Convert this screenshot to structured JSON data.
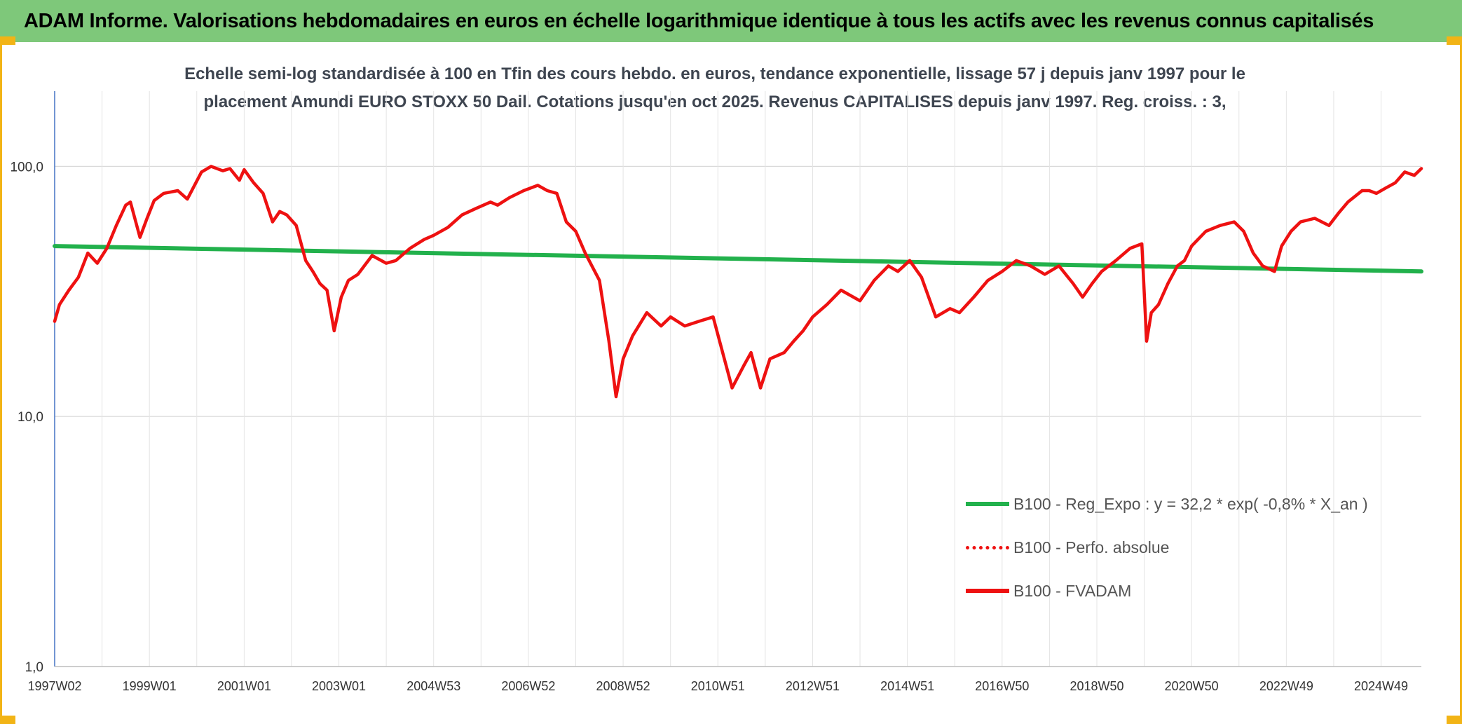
{
  "header": {
    "title": "ADAM Informe. Valorisations hebdomadaires en euros en échelle logarithmique identique à tous les actifs avec les revenus connus capitalisés"
  },
  "colors": {
    "banner": "#7ec87a",
    "accent": "#f2b416",
    "regression": "#22b14c",
    "fvadam": "#ee1111"
  },
  "chart_data": {
    "type": "line",
    "title_line1": "Echelle semi-log standardisée à 100 en Tfin des cours hebdo. en euros, tendance exponentielle, lissage 57 j depuis janv 1997 pour le",
    "title_line2": "placement Amundi EURO STOXX 50 Dail. Cotations jusqu'en oct 2025. Revenus CAPITALISES depuis janv 1997. Reg. croiss. : 3,",
    "y_scale": "log",
    "ylim": [
      1,
      200
    ],
    "xlim": [
      1997.0,
      2025.85
    ],
    "y_ticks": [
      "1,0",
      "10,0",
      "100,0"
    ],
    "y_tick_values": [
      1,
      10,
      100
    ],
    "x_ticks": [
      "1997W02",
      "1999W01",
      "2001W01",
      "2003W01",
      "2004W53",
      "2006W52",
      "2008W52",
      "2010W51",
      "2012W51",
      "2014W51",
      "2016W50",
      "2018W50",
      "2020W50",
      "2022W49",
      "2024W49"
    ],
    "x_tick_years": [
      1997.0,
      1999.0,
      2001.0,
      2003.0,
      2005.0,
      2007.0,
      2009.0,
      2011.0,
      2013.0,
      2015.0,
      2017.0,
      2019.0,
      2021.0,
      2023.0,
      2025.0
    ],
    "grid": true,
    "legend_position": "bottom-right",
    "series": [
      {
        "name": "B100 - Reg_Expo : y = 32,2 * exp( -0,8% *  X_an )",
        "style": "solid",
        "color": "#22b14c",
        "x": [
          1997.0,
          2025.85
        ],
        "y": [
          48,
          38
        ]
      },
      {
        "name": "B100 - Perfo. absolue",
        "style": "dotted",
        "color": "#ee1111",
        "x": [],
        "y": []
      },
      {
        "name": "B100 - FVADAM",
        "style": "solid",
        "color": "#ee1111",
        "x": [
          1997.0,
          1997.1,
          1997.3,
          1997.5,
          1997.7,
          1997.9,
          1998.1,
          1998.3,
          1998.5,
          1998.6,
          1998.8,
          1998.95,
          1999.1,
          1999.3,
          1999.6,
          1999.8,
          2000.1,
          2000.3,
          2000.55,
          2000.7,
          2000.9,
          2001.0,
          2001.2,
          2001.4,
          2001.6,
          2001.75,
          2001.9,
          2002.1,
          2002.3,
          2002.45,
          2002.6,
          2002.75,
          2002.9,
          2003.05,
          2003.2,
          2003.4,
          2003.7,
          2004.0,
          2004.2,
          2004.5,
          2004.8,
          2005.0,
          2005.3,
          2005.6,
          2005.9,
          2006.2,
          2006.35,
          2006.6,
          2006.9,
          2007.2,
          2007.4,
          2007.6,
          2007.8,
          2008.0,
          2008.2,
          2008.5,
          2008.7,
          2008.85,
          2009.0,
          2009.2,
          2009.5,
          2009.8,
          2010.0,
          2010.3,
          2010.6,
          2010.9,
          2011.3,
          2011.55,
          2011.7,
          2011.9,
          2012.1,
          2012.4,
          2012.6,
          2012.8,
          2013.0,
          2013.3,
          2013.6,
          2014.0,
          2014.3,
          2014.6,
          2014.8,
          2015.05,
          2015.3,
          2015.6,
          2015.9,
          2016.1,
          2016.4,
          2016.7,
          2017.0,
          2017.3,
          2017.6,
          2017.9,
          2018.2,
          2018.5,
          2018.7,
          2018.9,
          2019.1,
          2019.4,
          2019.7,
          2019.95,
          2020.05,
          2020.15,
          2020.3,
          2020.5,
          2020.7,
          2020.85,
          2021.0,
          2021.3,
          2021.6,
          2021.9,
          2022.1,
          2022.3,
          2022.5,
          2022.75,
          2022.9,
          2023.1,
          2023.3,
          2023.6,
          2023.9,
          2024.1,
          2024.3,
          2024.6,
          2024.75,
          2024.9,
          2025.1,
          2025.3,
          2025.5,
          2025.7,
          2025.85
        ],
        "y": [
          24,
          28,
          32,
          36,
          45,
          41,
          47,
          58,
          70,
          72,
          52,
          62,
          73,
          78,
          80,
          74,
          95,
          100,
          96,
          98,
          88,
          97,
          86,
          78,
          60,
          66,
          64,
          58,
          42,
          38,
          34,
          32,
          22,
          30,
          35,
          37,
          44,
          41,
          42,
          47,
          51,
          53,
          57,
          64,
          68,
          72,
          70,
          75,
          80,
          84,
          80,
          78,
          60,
          55,
          45,
          35,
          20,
          12,
          17,
          21,
          26,
          23,
          25,
          23,
          24,
          25,
          13,
          16,
          18,
          13,
          17,
          18,
          20,
          22,
          25,
          28,
          32,
          29,
          35,
          40,
          38,
          42,
          36,
          25,
          27,
          26,
          30,
          35,
          38,
          42,
          40,
          37,
          40,
          34,
          30,
          34,
          38,
          42,
          47,
          49,
          20,
          26,
          28,
          34,
          40,
          42,
          48,
          55,
          58,
          60,
          55,
          45,
          40,
          38,
          48,
          55,
          60,
          62,
          58,
          65,
          72,
          80,
          80,
          78,
          82,
          86,
          95,
          92,
          98
        ]
      }
    ]
  },
  "legend": {
    "items": [
      {
        "label": "B100 - Reg_Expo : y = 32,2 * exp( -0,8% *  X_an )"
      },
      {
        "label": "B100 - Perfo. absolue"
      },
      {
        "label": "B100 - FVADAM"
      }
    ]
  }
}
